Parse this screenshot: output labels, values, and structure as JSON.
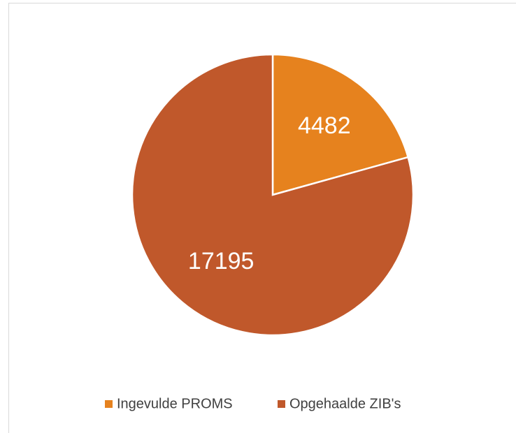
{
  "chart_data": {
    "type": "pie",
    "categories": [
      "Ingevulde PROMS",
      "Opgehaalde ZIB's"
    ],
    "values": [
      4482,
      17195
    ],
    "colors": [
      "#e6821e",
      "#c0582b"
    ],
    "legend": "bottom"
  }
}
